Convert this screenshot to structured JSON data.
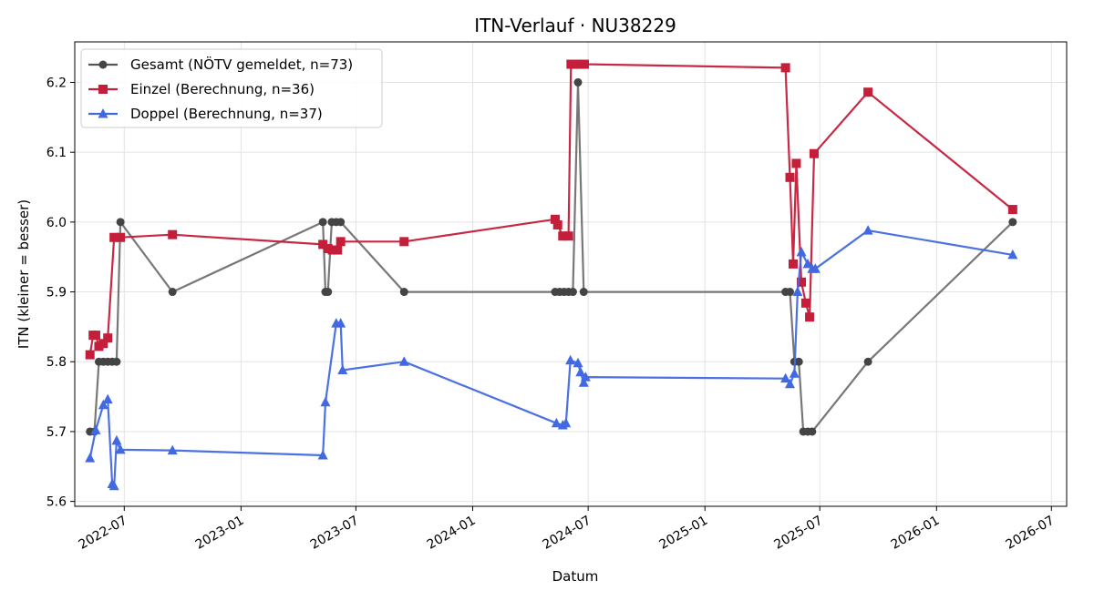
{
  "chart_data": {
    "type": "line",
    "title": "ITN-Verlauf · NU38229",
    "xlabel": "Datum",
    "ylabel": "ITN  (kleiner = besser)",
    "x_ticks": [
      "2022-07",
      "2023-01",
      "2023-07",
      "2024-01",
      "2024-07",
      "2025-01",
      "2025-07",
      "2026-01",
      "2026-07"
    ],
    "y_ticks": [
      "5.6",
      "5.7",
      "5.8",
      "5.9",
      "6.0",
      "6.1",
      "6.2"
    ],
    "xlim": [
      "2022-04-14",
      "2026-07-25"
    ],
    "ylim": [
      5.593,
      6.258
    ],
    "grid": true,
    "legend_position": "top-left",
    "series": [
      {
        "name": "Gesamt (NÖTV gemeldet, n=73)",
        "color": "#555555",
        "marker_color": "#444444",
        "marker": "circle",
        "points": [
          [
            "2022-05-08",
            5.7
          ],
          [
            "2022-05-15",
            5.7
          ],
          [
            "2022-05-22",
            5.8
          ],
          [
            "2022-05-29",
            5.8
          ],
          [
            "2022-06-05",
            5.8
          ],
          [
            "2022-06-12",
            5.8
          ],
          [
            "2022-06-19",
            5.8
          ],
          [
            "2022-06-25",
            6.0
          ],
          [
            "2022-09-15",
            5.9
          ],
          [
            "2023-05-10",
            6.0
          ],
          [
            "2023-05-14",
            5.9
          ],
          [
            "2023-05-18",
            5.9
          ],
          [
            "2023-05-24",
            6.0
          ],
          [
            "2023-05-31",
            6.0
          ],
          [
            "2023-06-07",
            6.0
          ],
          [
            "2023-09-15",
            5.9
          ],
          [
            "2024-05-10",
            5.9
          ],
          [
            "2024-05-17",
            5.9
          ],
          [
            "2024-05-24",
            5.9
          ],
          [
            "2024-05-31",
            5.9
          ],
          [
            "2024-06-07",
            5.9
          ],
          [
            "2024-06-15",
            6.2
          ],
          [
            "2024-06-24",
            5.9
          ],
          [
            "2025-05-08",
            5.9
          ],
          [
            "2025-05-15",
            5.9
          ],
          [
            "2025-05-22",
            5.8
          ],
          [
            "2025-05-29",
            5.8
          ],
          [
            "2025-06-05",
            5.7
          ],
          [
            "2025-06-12",
            5.7
          ],
          [
            "2025-06-19",
            5.7
          ],
          [
            "2025-09-15",
            5.8
          ],
          [
            "2026-05-01",
            6.0
          ]
        ]
      },
      {
        "name": "Einzel (Berechnung, n=36)",
        "color": "#c41e3a",
        "marker_color": "#c41e3a",
        "marker": "square",
        "points": [
          [
            "2022-05-08",
            5.81
          ],
          [
            "2022-05-13",
            5.838
          ],
          [
            "2022-05-17",
            5.838
          ],
          [
            "2022-05-22",
            5.822
          ],
          [
            "2022-05-29",
            5.826
          ],
          [
            "2022-06-05",
            5.834
          ],
          [
            "2022-06-15",
            5.978
          ],
          [
            "2022-06-25",
            5.978
          ],
          [
            "2022-09-15",
            5.982
          ],
          [
            "2023-05-10",
            5.968
          ],
          [
            "2023-05-18",
            5.962
          ],
          [
            "2023-05-25",
            5.96
          ],
          [
            "2023-06-02",
            5.96
          ],
          [
            "2023-06-07",
            5.972
          ],
          [
            "2023-09-15",
            5.972
          ],
          [
            "2024-05-10",
            6.004
          ],
          [
            "2024-05-14",
            5.996
          ],
          [
            "2024-05-22",
            5.98
          ],
          [
            "2024-05-31",
            5.98
          ],
          [
            "2024-06-04",
            6.226
          ],
          [
            "2024-06-12",
            6.226
          ],
          [
            "2024-06-19",
            6.226
          ],
          [
            "2024-06-25",
            6.226
          ],
          [
            "2025-05-08",
            6.221
          ],
          [
            "2025-05-15",
            6.064
          ],
          [
            "2025-05-20",
            5.94
          ],
          [
            "2025-05-25",
            6.084
          ],
          [
            "2025-06-02",
            5.914
          ],
          [
            "2025-06-09",
            5.884
          ],
          [
            "2025-06-15",
            5.864
          ],
          [
            "2025-06-22",
            6.098
          ],
          [
            "2025-09-15",
            6.186
          ],
          [
            "2026-05-01",
            6.018
          ]
        ]
      },
      {
        "name": "Doppel (Berechnung, n=37)",
        "color": "#4169e1",
        "marker_color": "#4169e1",
        "marker": "triangle",
        "points": [
          [
            "2022-05-08",
            5.662
          ],
          [
            "2022-05-17",
            5.702
          ],
          [
            "2022-05-29",
            5.738
          ],
          [
            "2022-06-05",
            5.746
          ],
          [
            "2022-06-12",
            5.625
          ],
          [
            "2022-06-15",
            5.622
          ],
          [
            "2022-06-19",
            5.687
          ],
          [
            "2022-06-25",
            5.674
          ],
          [
            "2022-09-15",
            5.673
          ],
          [
            "2023-05-10",
            5.666
          ],
          [
            "2023-05-14",
            5.742
          ],
          [
            "2023-05-31",
            5.855
          ],
          [
            "2023-06-07",
            5.855
          ],
          [
            "2023-06-10",
            5.788
          ],
          [
            "2023-09-15",
            5.8
          ],
          [
            "2024-05-12",
            5.712
          ],
          [
            "2024-05-22",
            5.709
          ],
          [
            "2024-05-27",
            5.712
          ],
          [
            "2024-06-03",
            5.802
          ],
          [
            "2024-06-15",
            5.798
          ],
          [
            "2024-06-19",
            5.785
          ],
          [
            "2024-06-24",
            5.77
          ],
          [
            "2024-06-27",
            5.778
          ],
          [
            "2025-05-08",
            5.776
          ],
          [
            "2025-05-15",
            5.768
          ],
          [
            "2025-05-22",
            5.783
          ],
          [
            "2025-05-27",
            5.9
          ],
          [
            "2025-06-02",
            5.957
          ],
          [
            "2025-06-12",
            5.94
          ],
          [
            "2025-06-19",
            5.933
          ],
          [
            "2025-06-24",
            5.933
          ],
          [
            "2025-09-15",
            5.988
          ],
          [
            "2026-05-01",
            5.953
          ]
        ]
      }
    ]
  }
}
